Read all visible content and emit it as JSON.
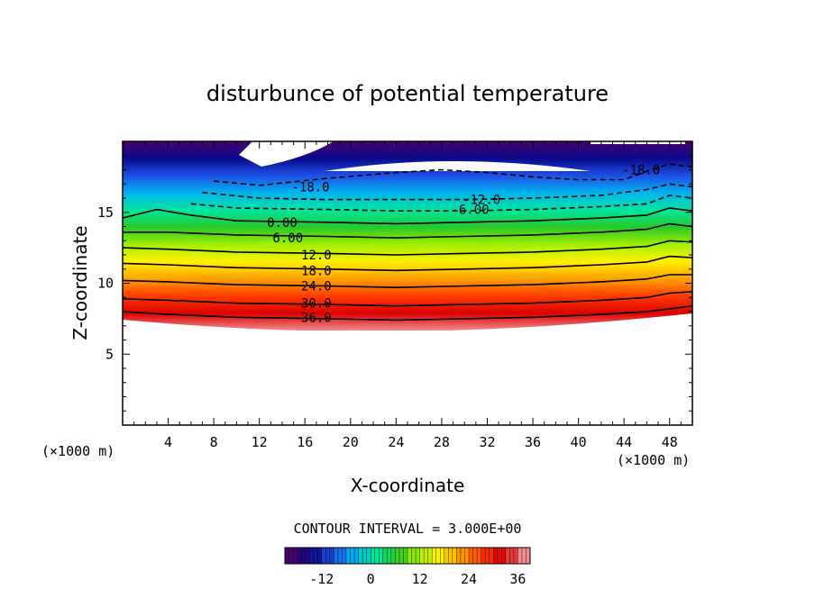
{
  "chart_data": {
    "type": "contour",
    "title": "disturbunce of potential temperature",
    "xlabel": "X-coordinate",
    "ylabel": "Z-coordinate",
    "x_unit_left": "(×1000 m)",
    "x_unit_right": "(×1000 m)",
    "xlim": [
      0,
      50
    ],
    "ylim": [
      0,
      20
    ],
    "x_ticks": [
      4,
      8,
      12,
      16,
      20,
      24,
      28,
      32,
      36,
      40,
      44,
      48
    ],
    "y_ticks": [
      5,
      10,
      15
    ],
    "contour_interval_label": "CONTOUR INTERVAL = 3.000E+00",
    "contour_interval": 3.0,
    "colorbar": {
      "range": [
        -21,
        39
      ],
      "ticks": [
        -12,
        0,
        12,
        24,
        36
      ],
      "colors": [
        "#4b006e",
        "#0a0a8c",
        "#1e50e6",
        "#00b4f0",
        "#00e6a0",
        "#28c828",
        "#a0f000",
        "#fff000",
        "#ffa000",
        "#ff3c00",
        "#dc0000",
        "#f08c8c"
      ]
    },
    "contour_labels": [
      "-18.0",
      "-18.0",
      "-12.0",
      "-6.00",
      "0.00",
      "6.00",
      "12.0",
      "18.0",
      "24.0",
      "30.0",
      "36.0"
    ],
    "contours": [
      {
        "level": 36,
        "points": [
          [
            0,
            8.0
          ],
          [
            4,
            7.8
          ],
          [
            10,
            7.6
          ],
          [
            18,
            7.5
          ],
          [
            24,
            7.4
          ],
          [
            30,
            7.5
          ],
          [
            36,
            7.6
          ],
          [
            42,
            7.8
          ],
          [
            46,
            8.0
          ],
          [
            48,
            8.2
          ],
          [
            50,
            8.4
          ]
        ]
      },
      {
        "level": 30,
        "points": [
          [
            0,
            8.9
          ],
          [
            4,
            8.8
          ],
          [
            10,
            8.6
          ],
          [
            18,
            8.5
          ],
          [
            24,
            8.4
          ],
          [
            30,
            8.5
          ],
          [
            36,
            8.6
          ],
          [
            42,
            8.8
          ],
          [
            46,
            9.0
          ],
          [
            48,
            9.3
          ],
          [
            50,
            9.4
          ]
        ]
      },
      {
        "level": 24,
        "points": [
          [
            0,
            10.2
          ],
          [
            4,
            10.1
          ],
          [
            10,
            9.9
          ],
          [
            18,
            9.8
          ],
          [
            24,
            9.7
          ],
          [
            30,
            9.8
          ],
          [
            36,
            9.9
          ],
          [
            42,
            10.1
          ],
          [
            46,
            10.3
          ],
          [
            48,
            10.6
          ],
          [
            50,
            10.6
          ]
        ]
      },
      {
        "level": 18,
        "points": [
          [
            0,
            11.4
          ],
          [
            4,
            11.3
          ],
          [
            10,
            11.1
          ],
          [
            18,
            11.0
          ],
          [
            24,
            10.9
          ],
          [
            30,
            11.0
          ],
          [
            36,
            11.1
          ],
          [
            42,
            11.3
          ],
          [
            46,
            11.5
          ],
          [
            48,
            11.9
          ],
          [
            50,
            11.8
          ]
        ]
      },
      {
        "level": 12,
        "points": [
          [
            0,
            12.5
          ],
          [
            4,
            12.4
          ],
          [
            10,
            12.2
          ],
          [
            18,
            12.1
          ],
          [
            24,
            12.0
          ],
          [
            30,
            12.1
          ],
          [
            36,
            12.2
          ],
          [
            42,
            12.4
          ],
          [
            46,
            12.6
          ],
          [
            48,
            13.0
          ],
          [
            50,
            12.9
          ]
        ]
      },
      {
        "level": 6,
        "points": [
          [
            0,
            13.6
          ],
          [
            4,
            13.6
          ],
          [
            10,
            13.4
          ],
          [
            18,
            13.3
          ],
          [
            24,
            13.2
          ],
          [
            30,
            13.3
          ],
          [
            36,
            13.4
          ],
          [
            42,
            13.6
          ],
          [
            46,
            13.8
          ],
          [
            48,
            14.2
          ],
          [
            50,
            14.0
          ]
        ]
      },
      {
        "level": 0,
        "points": [
          [
            0,
            14.6
          ],
          [
            3,
            15.2
          ],
          [
            6,
            14.8
          ],
          [
            10,
            14.4
          ],
          [
            18,
            14.3
          ],
          [
            24,
            14.2
          ],
          [
            30,
            14.3
          ],
          [
            36,
            14.4
          ],
          [
            42,
            14.6
          ],
          [
            46,
            14.8
          ],
          [
            48,
            15.3
          ],
          [
            50,
            15.1
          ]
        ]
      },
      {
        "level": -6,
        "points": [
          [
            6,
            15.6
          ],
          [
            10,
            15.3
          ],
          [
            18,
            15.2
          ],
          [
            24,
            15.1
          ],
          [
            30,
            15.1
          ],
          [
            36,
            15.2
          ],
          [
            42,
            15.4
          ],
          [
            46,
            15.6
          ],
          [
            48,
            16.2
          ],
          [
            50,
            16.0
          ]
        ]
      },
      {
        "level": -12,
        "points": [
          [
            7,
            16.4
          ],
          [
            12,
            16.0
          ],
          [
            18,
            15.9
          ],
          [
            24,
            15.9
          ],
          [
            30,
            15.9
          ],
          [
            36,
            16.0
          ],
          [
            42,
            16.2
          ],
          [
            46,
            16.6
          ],
          [
            48,
            17.0
          ],
          [
            50,
            16.8
          ]
        ]
      },
      {
        "level": -18,
        "points": [
          [
            8,
            17.2
          ],
          [
            12,
            16.9
          ],
          [
            18,
            17.4
          ],
          [
            24,
            17.8
          ],
          [
            28,
            18.0
          ],
          [
            32,
            17.8
          ],
          [
            36,
            17.5
          ],
          [
            40,
            17.3
          ],
          [
            44,
            17.3
          ],
          [
            46,
            17.9
          ],
          [
            48,
            18.4
          ],
          [
            50,
            18.2
          ]
        ]
      }
    ]
  }
}
